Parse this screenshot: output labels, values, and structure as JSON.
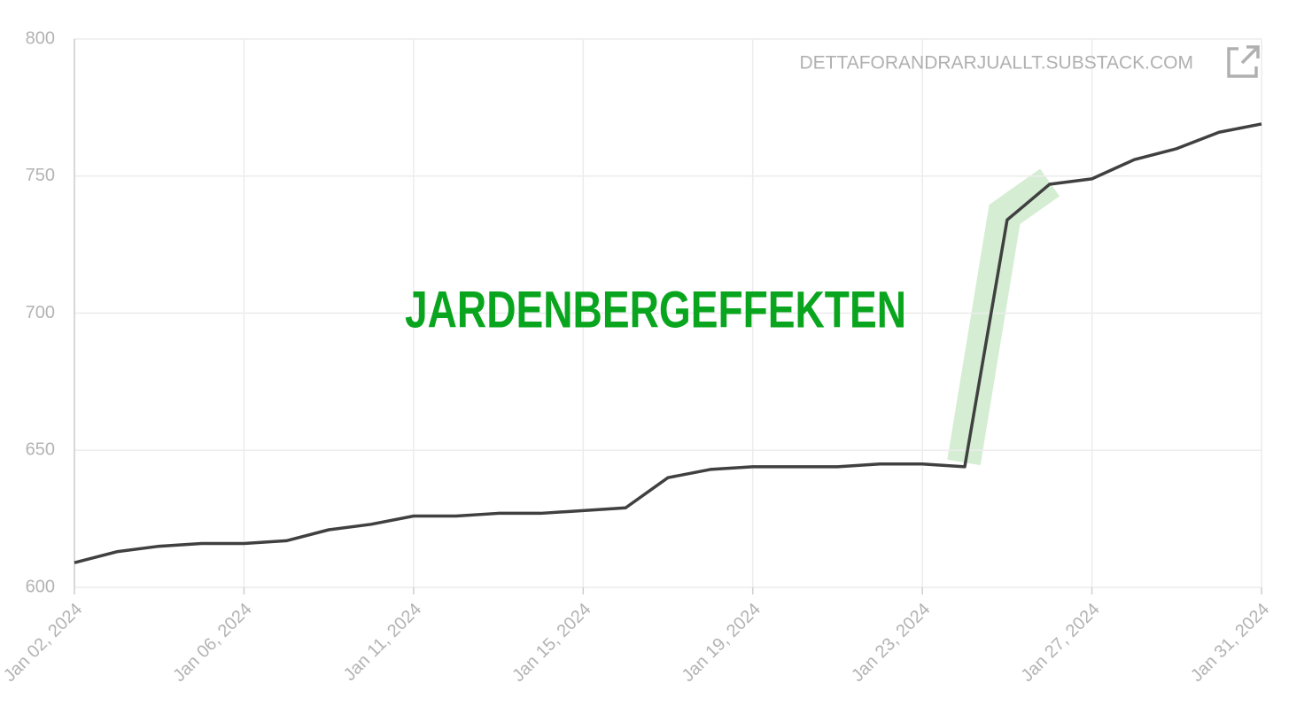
{
  "chart_data": {
    "type": "line",
    "annotation": "JARDENBERGEFFEKTEN",
    "watermark": "DETTAFORANDRARJUALLT.SUBSTACK.COM",
    "categories": [
      "Jan 02, 2024",
      null,
      null,
      null,
      "Jan 06, 2024",
      null,
      null,
      null,
      "Jan 11, 2024",
      null,
      null,
      null,
      "Jan 15, 2024",
      null,
      null,
      null,
      "Jan 19, 2024",
      null,
      null,
      null,
      "Jan 23, 2024",
      null,
      null,
      null,
      "Jan 27, 2024",
      null,
      null,
      null,
      "Jan 31, 2024"
    ],
    "series": [
      {
        "color": "#404040",
        "values": [
          609,
          613,
          615,
          616,
          616,
          617,
          621,
          623,
          626,
          626,
          627,
          627,
          628,
          629,
          640,
          643,
          644,
          644,
          644,
          645,
          645,
          644,
          734,
          747,
          749,
          756,
          760,
          766,
          769
        ]
      }
    ],
    "ylim": [
      600,
      800
    ],
    "yticks": [
      600,
      650,
      700,
      750,
      800
    ],
    "grid": true
  }
}
